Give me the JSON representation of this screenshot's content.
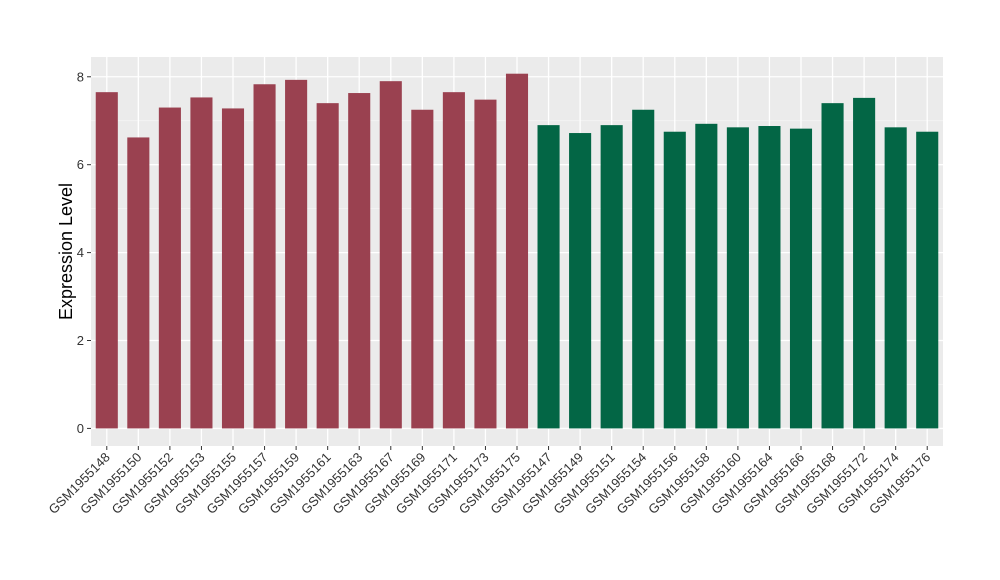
{
  "chart_data": {
    "type": "bar",
    "title": "",
    "xlabel": "",
    "ylabel": "Expression Level",
    "ylim": [
      0,
      8.2
    ],
    "y_ticks": [
      0,
      2,
      4,
      6,
      8
    ],
    "grid": true,
    "background": "#EBEBEB",
    "categories": [
      "GSM1955148",
      "GSM1955150",
      "GSM1955152",
      "GSM1955153",
      "GSM1955155",
      "GSM1955157",
      "GSM1955159",
      "GSM1955161",
      "GSM1955163",
      "GSM1955167",
      "GSM1955169",
      "GSM1955171",
      "GSM1955173",
      "GSM1955175",
      "GSM1955147",
      "GSM1955149",
      "GSM1955151",
      "GSM1955154",
      "GSM1955156",
      "GSM1955158",
      "GSM1955160",
      "GSM1955164",
      "GSM1955166",
      "GSM1955168",
      "GSM1955172",
      "GSM1955174",
      "GSM1955176"
    ],
    "values": [
      7.65,
      6.62,
      7.3,
      7.53,
      7.28,
      7.83,
      7.93,
      7.4,
      7.63,
      7.9,
      7.25,
      7.65,
      7.48,
      8.07,
      6.9,
      6.72,
      6.9,
      7.25,
      6.75,
      6.93,
      6.85,
      6.88,
      6.82,
      7.4,
      7.52,
      6.85,
      6.75
    ],
    "groups": [
      "a",
      "a",
      "a",
      "a",
      "a",
      "a",
      "a",
      "a",
      "a",
      "a",
      "a",
      "a",
      "a",
      "a",
      "b",
      "b",
      "b",
      "b",
      "b",
      "b",
      "b",
      "b",
      "b",
      "b",
      "b",
      "b",
      "b"
    ],
    "group_colors": {
      "a": "#9A4150",
      "b": "#036645"
    }
  }
}
